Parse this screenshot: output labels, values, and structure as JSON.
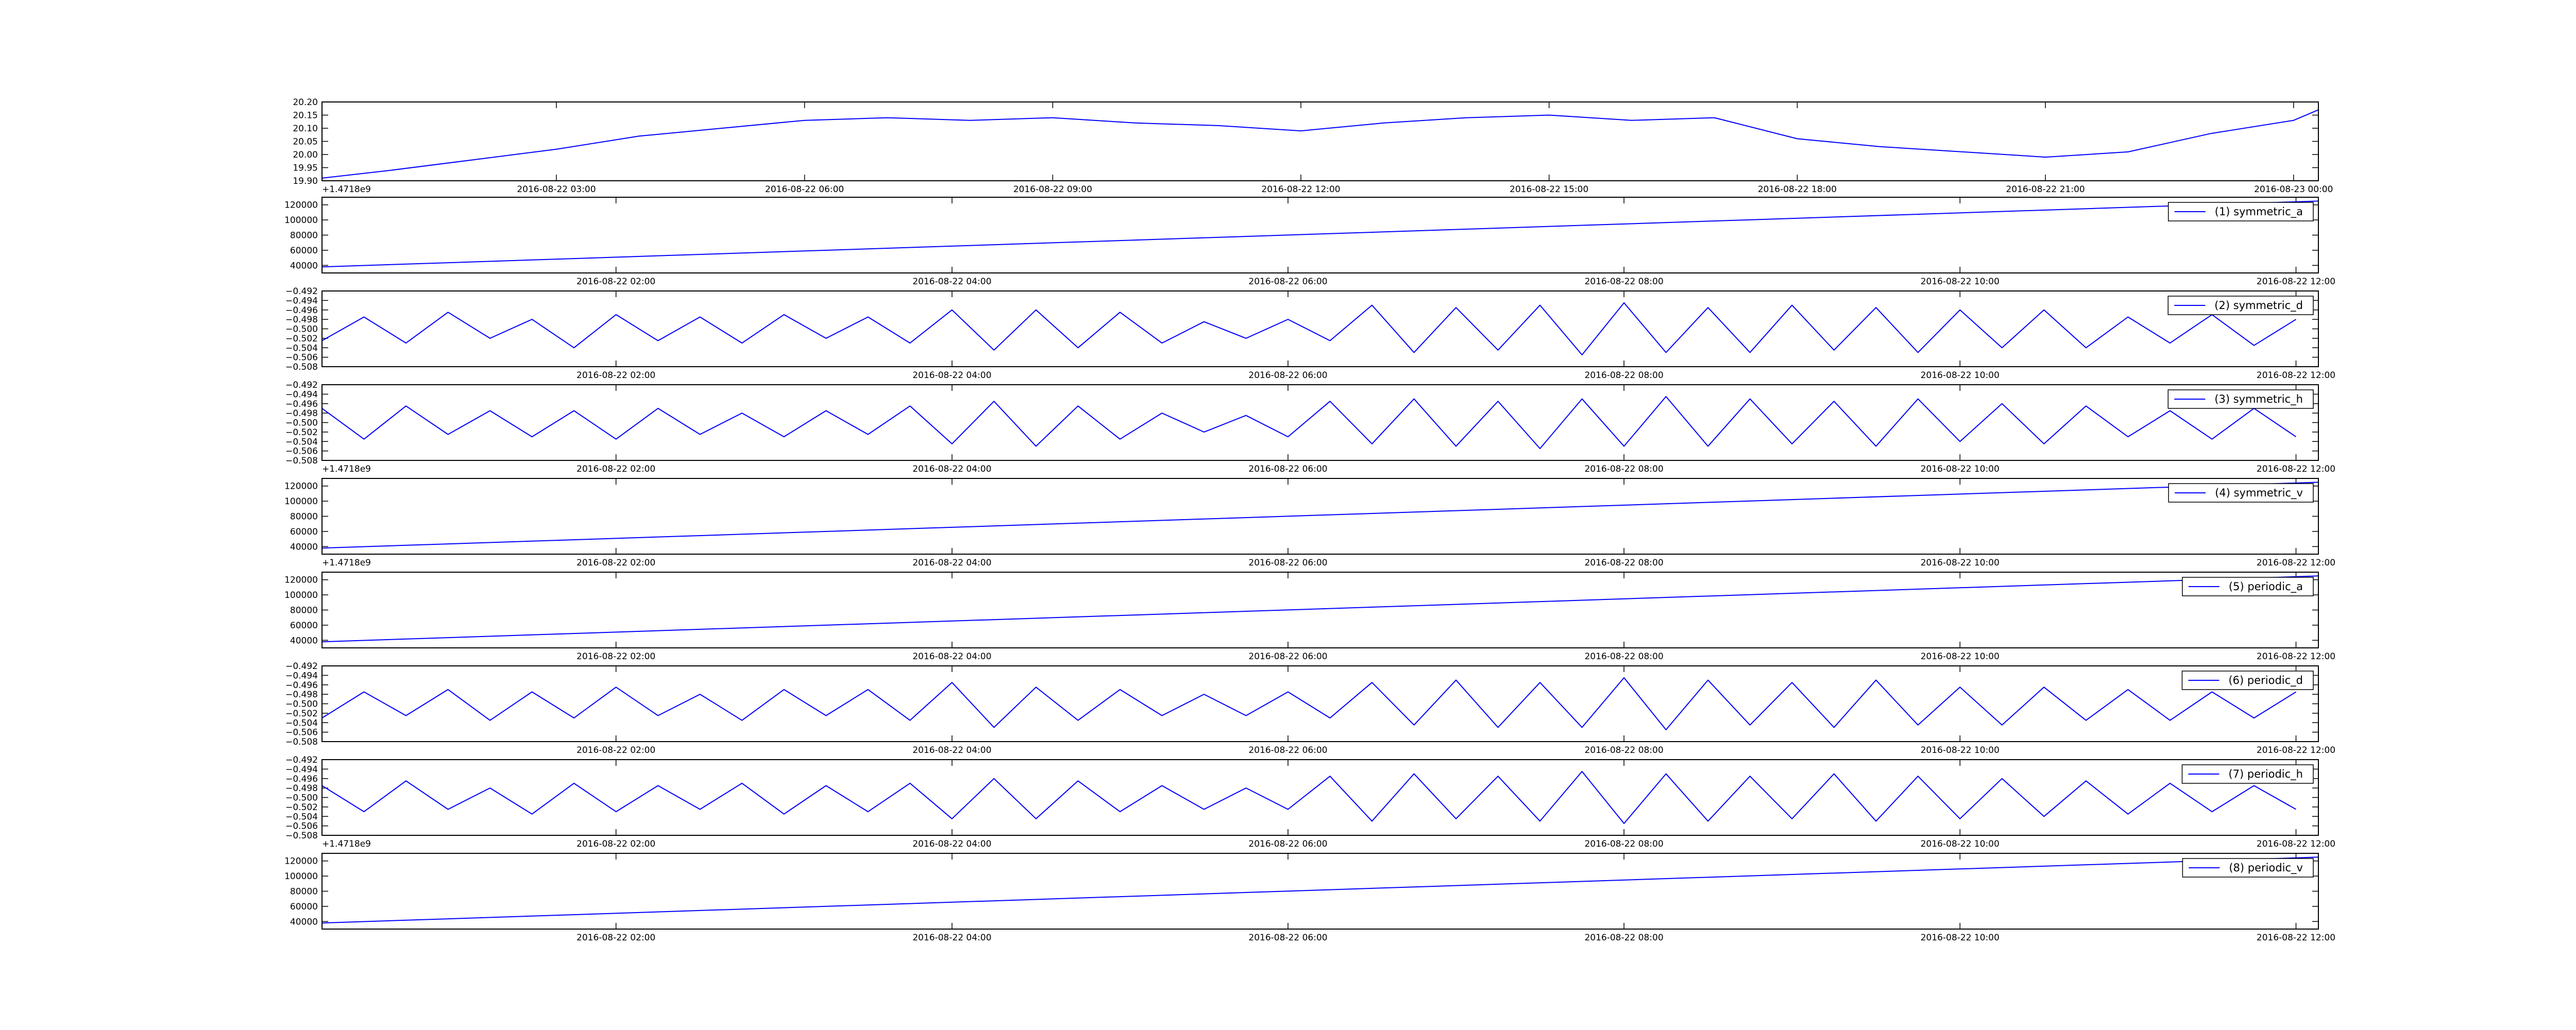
{
  "chart_data": [
    {
      "type": "line",
      "offset_text": "+1.4718e9",
      "x": [
        "2016-08-22 00:10",
        "2016-08-22 01:00",
        "2016-08-22 02:00",
        "2016-08-22 03:00",
        "2016-08-22 04:00",
        "2016-08-22 05:00",
        "2016-08-22 06:00",
        "2016-08-22 07:00",
        "2016-08-22 08:00",
        "2016-08-22 09:00",
        "2016-08-22 10:00",
        "2016-08-22 11:00",
        "2016-08-22 12:00",
        "2016-08-22 13:00",
        "2016-08-22 14:00",
        "2016-08-22 15:00",
        "2016-08-22 16:00",
        "2016-08-22 17:00",
        "2016-08-22 18:00",
        "2016-08-22 19:00",
        "2016-08-22 20:00",
        "2016-08-22 21:00",
        "2016-08-22 22:00",
        "2016-08-22 23:00",
        "2016-08-23 00:00",
        "2016-08-23 00:18"
      ],
      "series": [
        {
          "color": "#0000ff",
          "values": [
            19.91,
            19.94,
            19.98,
            20.02,
            20.07,
            20.1,
            20.13,
            20.14,
            20.13,
            20.14,
            20.12,
            20.11,
            20.09,
            20.12,
            20.14,
            20.15,
            20.13,
            20.14,
            20.06,
            20.03,
            20.01,
            19.99,
            20.01,
            20.08,
            20.13,
            20.17
          ]
        }
      ],
      "xlim": [
        "2016-08-22 00:10",
        "2016-08-23 00:18"
      ],
      "xticks": [
        "2016-08-22 03:00",
        "2016-08-22 06:00",
        "2016-08-22 09:00",
        "2016-08-22 12:00",
        "2016-08-22 15:00",
        "2016-08-22 18:00",
        "2016-08-22 21:00",
        "2016-08-23 00:00"
      ],
      "ylim": [
        19.9,
        20.2
      ],
      "yticks": [
        {
          "value": 19.9,
          "label": "19.90"
        },
        19.95,
        {
          "value": 20.0,
          "label": "20.00"
        },
        20.05,
        {
          "value": 20.1,
          "label": "20.10"
        },
        20.15,
        {
          "value": 20.2,
          "label": "20.20"
        }
      ]
    },
    {
      "type": "line",
      "legend": "upper right",
      "x": [
        "2016-08-22 00:15",
        "2016-08-22 12:08"
      ],
      "series": [
        {
          "name": "(1) symmetric_a",
          "color": "#0000ff",
          "values": [
            38000,
            125000
          ]
        }
      ],
      "xlim": [
        "2016-08-22 00:15",
        "2016-08-22 12:08"
      ],
      "xticks": [
        "2016-08-22 02:00",
        "2016-08-22 04:00",
        "2016-08-22 06:00",
        "2016-08-22 08:00",
        "2016-08-22 10:00",
        "2016-08-22 12:00"
      ],
      "ylim": [
        30000,
        130000
      ],
      "yticks": [
        40000,
        60000,
        80000,
        100000,
        120000
      ]
    },
    {
      "type": "line",
      "legend": "upper right",
      "x": [
        "2016-08-22 00:15",
        "2016-08-22 00:30",
        "2016-08-22 00:45",
        "2016-08-22 01:00",
        "2016-08-22 01:15",
        "2016-08-22 01:30",
        "2016-08-22 01:45",
        "2016-08-22 02:00",
        "2016-08-22 02:15",
        "2016-08-22 02:30",
        "2016-08-22 02:45",
        "2016-08-22 03:00",
        "2016-08-22 03:15",
        "2016-08-22 03:30",
        "2016-08-22 03:45",
        "2016-08-22 04:00",
        "2016-08-22 04:15",
        "2016-08-22 04:30",
        "2016-08-22 04:45",
        "2016-08-22 05:00",
        "2016-08-22 05:15",
        "2016-08-22 05:30",
        "2016-08-22 05:45",
        "2016-08-22 06:00",
        "2016-08-22 06:15",
        "2016-08-22 06:30",
        "2016-08-22 06:45",
        "2016-08-22 07:00",
        "2016-08-22 07:15",
        "2016-08-22 07:30",
        "2016-08-22 07:45",
        "2016-08-22 08:00",
        "2016-08-22 08:15",
        "2016-08-22 08:30",
        "2016-08-22 08:45",
        "2016-08-22 09:00",
        "2016-08-22 09:15",
        "2016-08-22 09:30",
        "2016-08-22 09:45",
        "2016-08-22 10:00",
        "2016-08-22 10:15",
        "2016-08-22 10:30",
        "2016-08-22 10:45",
        "2016-08-22 11:00",
        "2016-08-22 11:15",
        "2016-08-22 11:30",
        "2016-08-22 11:45",
        "2016-08-22 12:00"
      ],
      "series": [
        {
          "name": "(2) symmetric_d",
          "color": "#0000ff",
          "values": [
            -0.5025,
            -0.4975,
            -0.503,
            -0.4965,
            -0.502,
            -0.498,
            -0.504,
            -0.497,
            -0.5025,
            -0.4975,
            -0.503,
            -0.497,
            -0.502,
            -0.4975,
            -0.503,
            -0.496,
            -0.5045,
            -0.496,
            -0.504,
            -0.4965,
            -0.503,
            -0.4985,
            -0.502,
            -0.498,
            -0.5025,
            -0.495,
            -0.505,
            -0.4955,
            -0.5045,
            -0.495,
            -0.5055,
            -0.4945,
            -0.505,
            -0.4955,
            -0.505,
            -0.495,
            -0.5045,
            -0.4955,
            -0.505,
            -0.496,
            -0.504,
            -0.496,
            -0.504,
            -0.4975,
            -0.503,
            -0.497,
            -0.5035,
            -0.498
          ]
        }
      ],
      "xlim": [
        "2016-08-22 00:15",
        "2016-08-22 12:08"
      ],
      "xticks": [
        "2016-08-22 02:00",
        "2016-08-22 04:00",
        "2016-08-22 06:00",
        "2016-08-22 08:00",
        "2016-08-22 10:00",
        "2016-08-22 12:00"
      ],
      "ylim": [
        -0.508,
        -0.492
      ],
      "yticks": [
        {
          "value": -0.508,
          "label": "−0.508"
        },
        {
          "value": -0.506,
          "label": "−0.506"
        },
        {
          "value": -0.504,
          "label": "−0.504"
        },
        {
          "value": -0.502,
          "label": "−0.502"
        },
        {
          "value": -0.5,
          "label": "−0.500"
        },
        {
          "value": -0.498,
          "label": "−0.498"
        },
        {
          "value": -0.496,
          "label": "−0.496"
        },
        {
          "value": -0.494,
          "label": "−0.494"
        },
        {
          "value": -0.492,
          "label": "−0.492"
        }
      ]
    },
    {
      "type": "line",
      "legend": "upper right",
      "offset_text": "+1.4718e9",
      "x": [
        "2016-08-22 00:15",
        "2016-08-22 00:30",
        "2016-08-22 00:45",
        "2016-08-22 01:00",
        "2016-08-22 01:15",
        "2016-08-22 01:30",
        "2016-08-22 01:45",
        "2016-08-22 02:00",
        "2016-08-22 02:15",
        "2016-08-22 02:30",
        "2016-08-22 02:45",
        "2016-08-22 03:00",
        "2016-08-22 03:15",
        "2016-08-22 03:30",
        "2016-08-22 03:45",
        "2016-08-22 04:00",
        "2016-08-22 04:15",
        "2016-08-22 04:30",
        "2016-08-22 04:45",
        "2016-08-22 05:00",
        "2016-08-22 05:15",
        "2016-08-22 05:30",
        "2016-08-22 05:45",
        "2016-08-22 06:00",
        "2016-08-22 06:15",
        "2016-08-22 06:30",
        "2016-08-22 06:45",
        "2016-08-22 07:00",
        "2016-08-22 07:15",
        "2016-08-22 07:30",
        "2016-08-22 07:45",
        "2016-08-22 08:00",
        "2016-08-22 08:15",
        "2016-08-22 08:30",
        "2016-08-22 08:45",
        "2016-08-22 09:00",
        "2016-08-22 09:15",
        "2016-08-22 09:30",
        "2016-08-22 09:45",
        "2016-08-22 10:00",
        "2016-08-22 10:15",
        "2016-08-22 10:30",
        "2016-08-22 10:45",
        "2016-08-22 11:00",
        "2016-08-22 11:15",
        "2016-08-22 11:30",
        "2016-08-22 11:45",
        "2016-08-22 12:00"
      ],
      "series": [
        {
          "name": "(3) symmetric_h",
          "color": "#0000ff",
          "values": [
            -0.497,
            -0.5035,
            -0.4965,
            -0.5025,
            -0.4975,
            -0.503,
            -0.4975,
            -0.5035,
            -0.497,
            -0.5025,
            -0.498,
            -0.503,
            -0.4975,
            -0.5025,
            -0.4965,
            -0.5045,
            -0.4955,
            -0.505,
            -0.4965,
            -0.5035,
            -0.498,
            -0.502,
            -0.4985,
            -0.503,
            -0.4955,
            -0.5045,
            -0.495,
            -0.505,
            -0.4955,
            -0.5055,
            -0.495,
            -0.505,
            -0.4945,
            -0.505,
            -0.495,
            -0.5045,
            -0.4955,
            -0.505,
            -0.495,
            -0.504,
            -0.496,
            -0.5045,
            -0.4965,
            -0.503,
            -0.4975,
            -0.5035,
            -0.497,
            -0.503
          ]
        }
      ],
      "xlim": [
        "2016-08-22 00:15",
        "2016-08-22 12:08"
      ],
      "xticks": [
        "2016-08-22 02:00",
        "2016-08-22 04:00",
        "2016-08-22 06:00",
        "2016-08-22 08:00",
        "2016-08-22 10:00",
        "2016-08-22 12:00"
      ],
      "ylim": [
        -0.508,
        -0.492
      ],
      "yticks": [
        {
          "value": -0.508,
          "label": "−0.508"
        },
        {
          "value": -0.506,
          "label": "−0.506"
        },
        {
          "value": -0.504,
          "label": "−0.504"
        },
        {
          "value": -0.502,
          "label": "−0.502"
        },
        {
          "value": -0.5,
          "label": "−0.500"
        },
        {
          "value": -0.498,
          "label": "−0.498"
        },
        {
          "value": -0.496,
          "label": "−0.496"
        },
        {
          "value": -0.494,
          "label": "−0.494"
        },
        {
          "value": -0.492,
          "label": "−0.492"
        }
      ]
    },
    {
      "type": "line",
      "legend": "upper right",
      "offset_text": "+1.4718e9",
      "x": [
        "2016-08-22 00:15",
        "2016-08-22 12:08"
      ],
      "series": [
        {
          "name": "(4) symmetric_v",
          "color": "#0000ff",
          "values": [
            38000,
            125000
          ]
        }
      ],
      "xlim": [
        "2016-08-22 00:15",
        "2016-08-22 12:08"
      ],
      "xticks": [
        "2016-08-22 02:00",
        "2016-08-22 04:00",
        "2016-08-22 06:00",
        "2016-08-22 08:00",
        "2016-08-22 10:00",
        "2016-08-22 12:00"
      ],
      "ylim": [
        30000,
        130000
      ],
      "yticks": [
        40000,
        60000,
        80000,
        100000,
        120000
      ]
    },
    {
      "type": "line",
      "legend": "upper right",
      "x": [
        "2016-08-22 00:15",
        "2016-08-22 12:08"
      ],
      "series": [
        {
          "name": "(5) periodic_a",
          "color": "#0000ff",
          "values": [
            38000,
            125000
          ]
        }
      ],
      "xlim": [
        "2016-08-22 00:15",
        "2016-08-22 12:08"
      ],
      "xticks": [
        "2016-08-22 02:00",
        "2016-08-22 04:00",
        "2016-08-22 06:00",
        "2016-08-22 08:00",
        "2016-08-22 10:00",
        "2016-08-22 12:00"
      ],
      "ylim": [
        30000,
        130000
      ],
      "yticks": [
        40000,
        60000,
        80000,
        100000,
        120000
      ]
    },
    {
      "type": "line",
      "legend": "upper right",
      "x": [
        "2016-08-22 00:15",
        "2016-08-22 00:30",
        "2016-08-22 00:45",
        "2016-08-22 01:00",
        "2016-08-22 01:15",
        "2016-08-22 01:30",
        "2016-08-22 01:45",
        "2016-08-22 02:00",
        "2016-08-22 02:15",
        "2016-08-22 02:30",
        "2016-08-22 02:45",
        "2016-08-22 03:00",
        "2016-08-22 03:15",
        "2016-08-22 03:30",
        "2016-08-22 03:45",
        "2016-08-22 04:00",
        "2016-08-22 04:15",
        "2016-08-22 04:30",
        "2016-08-22 04:45",
        "2016-08-22 05:00",
        "2016-08-22 05:15",
        "2016-08-22 05:30",
        "2016-08-22 05:45",
        "2016-08-22 06:00",
        "2016-08-22 06:15",
        "2016-08-22 06:30",
        "2016-08-22 06:45",
        "2016-08-22 07:00",
        "2016-08-22 07:15",
        "2016-08-22 07:30",
        "2016-08-22 07:45",
        "2016-08-22 08:00",
        "2016-08-22 08:15",
        "2016-08-22 08:30",
        "2016-08-22 08:45",
        "2016-08-22 09:00",
        "2016-08-22 09:15",
        "2016-08-22 09:30",
        "2016-08-22 09:45",
        "2016-08-22 10:00",
        "2016-08-22 10:15",
        "2016-08-22 10:30",
        "2016-08-22 10:45",
        "2016-08-22 11:00",
        "2016-08-22 11:15",
        "2016-08-22 11:30",
        "2016-08-22 11:45",
        "2016-08-22 12:00"
      ],
      "series": [
        {
          "name": "(6) periodic_d",
          "color": "#0000ff",
          "values": [
            -0.503,
            -0.4975,
            -0.5025,
            -0.497,
            -0.5035,
            -0.4975,
            -0.503,
            -0.4965,
            -0.5025,
            -0.498,
            -0.5035,
            -0.497,
            -0.5025,
            -0.497,
            -0.5035,
            -0.4955,
            -0.505,
            -0.4965,
            -0.5035,
            -0.497,
            -0.5025,
            -0.498,
            -0.5025,
            -0.4975,
            -0.503,
            -0.4955,
            -0.5045,
            -0.495,
            -0.505,
            -0.4955,
            -0.505,
            -0.4945,
            -0.5055,
            -0.495,
            -0.5045,
            -0.4955,
            -0.505,
            -0.495,
            -0.5045,
            -0.4965,
            -0.5045,
            -0.4965,
            -0.5035,
            -0.497,
            -0.5035,
            -0.4975,
            -0.503,
            -0.4975
          ]
        }
      ],
      "xlim": [
        "2016-08-22 00:15",
        "2016-08-22 12:08"
      ],
      "xticks": [
        "2016-08-22 02:00",
        "2016-08-22 04:00",
        "2016-08-22 06:00",
        "2016-08-22 08:00",
        "2016-08-22 10:00",
        "2016-08-22 12:00"
      ],
      "ylim": [
        -0.508,
        -0.492
      ],
      "yticks": [
        {
          "value": -0.508,
          "label": "−0.508"
        },
        {
          "value": -0.506,
          "label": "−0.506"
        },
        {
          "value": -0.504,
          "label": "−0.504"
        },
        {
          "value": -0.502,
          "label": "−0.502"
        },
        {
          "value": -0.5,
          "label": "−0.500"
        },
        {
          "value": -0.498,
          "label": "−0.498"
        },
        {
          "value": -0.496,
          "label": "−0.496"
        },
        {
          "value": -0.494,
          "label": "−0.494"
        },
        {
          "value": -0.492,
          "label": "−0.492"
        }
      ]
    },
    {
      "type": "line",
      "legend": "upper right",
      "offset_text": "+1.4718e9",
      "x": [
        "2016-08-22 00:15",
        "2016-08-22 00:30",
        "2016-08-22 00:45",
        "2016-08-22 01:00",
        "2016-08-22 01:15",
        "2016-08-22 01:30",
        "2016-08-22 01:45",
        "2016-08-22 02:00",
        "2016-08-22 02:15",
        "2016-08-22 02:30",
        "2016-08-22 02:45",
        "2016-08-22 03:00",
        "2016-08-22 03:15",
        "2016-08-22 03:30",
        "2016-08-22 03:45",
        "2016-08-22 04:00",
        "2016-08-22 04:15",
        "2016-08-22 04:30",
        "2016-08-22 04:45",
        "2016-08-22 05:00",
        "2016-08-22 05:15",
        "2016-08-22 05:30",
        "2016-08-22 05:45",
        "2016-08-22 06:00",
        "2016-08-22 06:15",
        "2016-08-22 06:30",
        "2016-08-22 06:45",
        "2016-08-22 07:00",
        "2016-08-22 07:15",
        "2016-08-22 07:30",
        "2016-08-22 07:45",
        "2016-08-22 08:00",
        "2016-08-22 08:15",
        "2016-08-22 08:30",
        "2016-08-22 08:45",
        "2016-08-22 09:00",
        "2016-08-22 09:15",
        "2016-08-22 09:30",
        "2016-08-22 09:45",
        "2016-08-22 10:00",
        "2016-08-22 10:15",
        "2016-08-22 10:30",
        "2016-08-22 10:45",
        "2016-08-22 11:00",
        "2016-08-22 11:15",
        "2016-08-22 11:30",
        "2016-08-22 11:45",
        "2016-08-22 12:00"
      ],
      "series": [
        {
          "name": "(7) periodic_h",
          "color": "#0000ff",
          "values": [
            -0.4975,
            -0.503,
            -0.4965,
            -0.5025,
            -0.498,
            -0.5035,
            -0.497,
            -0.503,
            -0.4975,
            -0.5025,
            -0.497,
            -0.5035,
            -0.4975,
            -0.503,
            -0.497,
            -0.5045,
            -0.496,
            -0.5045,
            -0.4965,
            -0.503,
            -0.4975,
            -0.5025,
            -0.498,
            -0.5025,
            -0.4955,
            -0.505,
            -0.495,
            -0.5045,
            -0.4955,
            -0.505,
            -0.4945,
            -0.5055,
            -0.495,
            -0.505,
            -0.4955,
            -0.5045,
            -0.495,
            -0.505,
            -0.4955,
            -0.5045,
            -0.496,
            -0.504,
            -0.4965,
            -0.5035,
            -0.497,
            -0.503,
            -0.4975,
            -0.5025
          ]
        }
      ],
      "xlim": [
        "2016-08-22 00:15",
        "2016-08-22 12:08"
      ],
      "xticks": [
        "2016-08-22 02:00",
        "2016-08-22 04:00",
        "2016-08-22 06:00",
        "2016-08-22 08:00",
        "2016-08-22 10:00",
        "2016-08-22 12:00"
      ],
      "ylim": [
        -0.508,
        -0.492
      ],
      "yticks": [
        {
          "value": -0.508,
          "label": "−0.508"
        },
        {
          "value": -0.506,
          "label": "−0.506"
        },
        {
          "value": -0.504,
          "label": "−0.504"
        },
        {
          "value": -0.502,
          "label": "−0.502"
        },
        {
          "value": -0.5,
          "label": "−0.500"
        },
        {
          "value": -0.498,
          "label": "−0.498"
        },
        {
          "value": -0.496,
          "label": "−0.496"
        },
        {
          "value": -0.494,
          "label": "−0.494"
        },
        {
          "value": -0.492,
          "label": "−0.492"
        }
      ]
    },
    {
      "type": "line",
      "legend": "upper right",
      "x": [
        "2016-08-22 00:15",
        "2016-08-22 12:08"
      ],
      "series": [
        {
          "name": "(8) periodic_v",
          "color": "#0000ff",
          "values": [
            38000,
            125000
          ]
        }
      ],
      "xlim": [
        "2016-08-22 00:15",
        "2016-08-22 12:08"
      ],
      "xticks": [
        "2016-08-22 02:00",
        "2016-08-22 04:00",
        "2016-08-22 06:00",
        "2016-08-22 08:00",
        "2016-08-22 10:00",
        "2016-08-22 12:00"
      ],
      "ylim": [
        30000,
        130000
      ],
      "yticks": [
        40000,
        60000,
        80000,
        100000,
        120000
      ]
    }
  ]
}
